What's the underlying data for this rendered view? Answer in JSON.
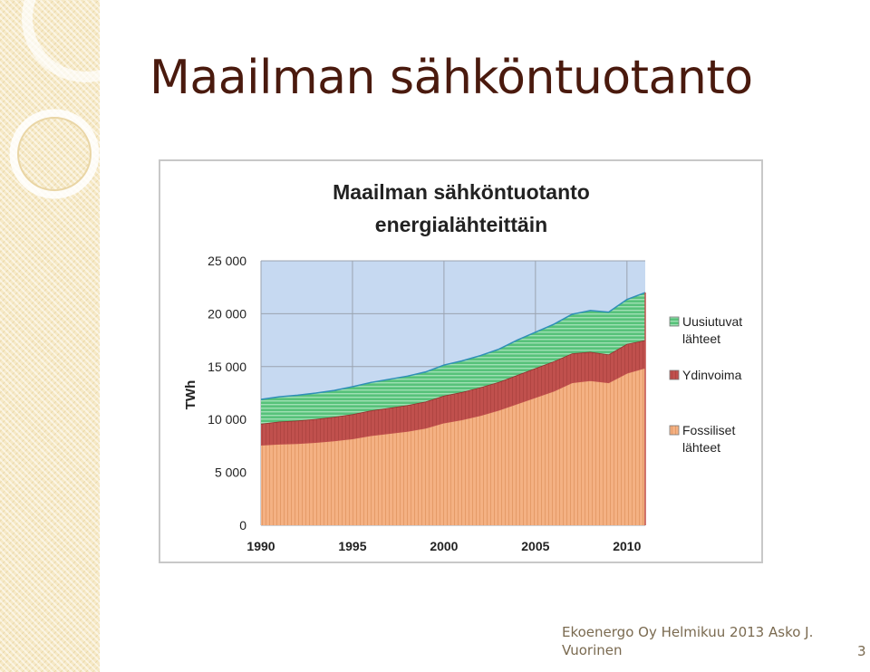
{
  "slide": {
    "title": "Maailman sähköntuotanto",
    "footer": "Ekoenergo Oy Helmikuu 2013 Asko J. Vuorinen",
    "page_number": "3"
  },
  "chart_data": {
    "type": "area",
    "stacked": true,
    "title": "Maailman sähköntuotanto",
    "subtitle": "energialähteittäin",
    "ylabel": "TWh",
    "xlabel": "",
    "ylim": [
      0,
      25000
    ],
    "xlim": [
      1990,
      2011
    ],
    "x_ticks": [
      1990,
      1995,
      2000,
      2005,
      2010
    ],
    "x_tick_labels": [
      "1990",
      "1995",
      "2000",
      "2005",
      "2010"
    ],
    "y_ticks": [
      0,
      5000,
      10000,
      15000,
      20000,
      25000
    ],
    "y_tick_labels": [
      "0",
      "5 000",
      "10 000",
      "15 000",
      "20 000",
      "25 000"
    ],
    "grid": true,
    "legend_position": "right",
    "x": [
      1990,
      1991,
      1992,
      1993,
      1994,
      1995,
      1996,
      1997,
      1998,
      1999,
      2000,
      2001,
      2002,
      2003,
      2004,
      2005,
      2006,
      2007,
      2008,
      2009,
      2010,
      2011
    ],
    "series": [
      {
        "name": "Fossiliset lähteet",
        "color": "#f4b183",
        "values": [
          7600,
          7700,
          7750,
          7850,
          8000,
          8200,
          8500,
          8700,
          8900,
          9200,
          9700,
          10000,
          10400,
          10900,
          11500,
          12100,
          12700,
          13500,
          13700,
          13500,
          14400,
          14900
        ]
      },
      {
        "name": "Ydinvoima",
        "color": "#c0504d",
        "values": [
          2000,
          2100,
          2150,
          2200,
          2250,
          2300,
          2350,
          2400,
          2450,
          2500,
          2550,
          2600,
          2650,
          2650,
          2700,
          2750,
          2800,
          2750,
          2700,
          2650,
          2750,
          2600
        ]
      },
      {
        "name": "Uusiutuvat lähteet",
        "color": "#57c27a",
        "values": [
          2300,
          2350,
          2400,
          2450,
          2500,
          2600,
          2650,
          2700,
          2750,
          2800,
          2900,
          2950,
          3000,
          3100,
          3300,
          3400,
          3500,
          3700,
          3900,
          4000,
          4200,
          4500
        ]
      }
    ],
    "legend": [
      "Uusiutuvat lähteet",
      "Ydinvoima",
      "Fossiliset lähteet"
    ],
    "colors": {
      "plot_bg": "#c6d9f1",
      "gridline": "#9aa3b0",
      "axis_text": "#222222",
      "title_text": "#222222"
    }
  }
}
